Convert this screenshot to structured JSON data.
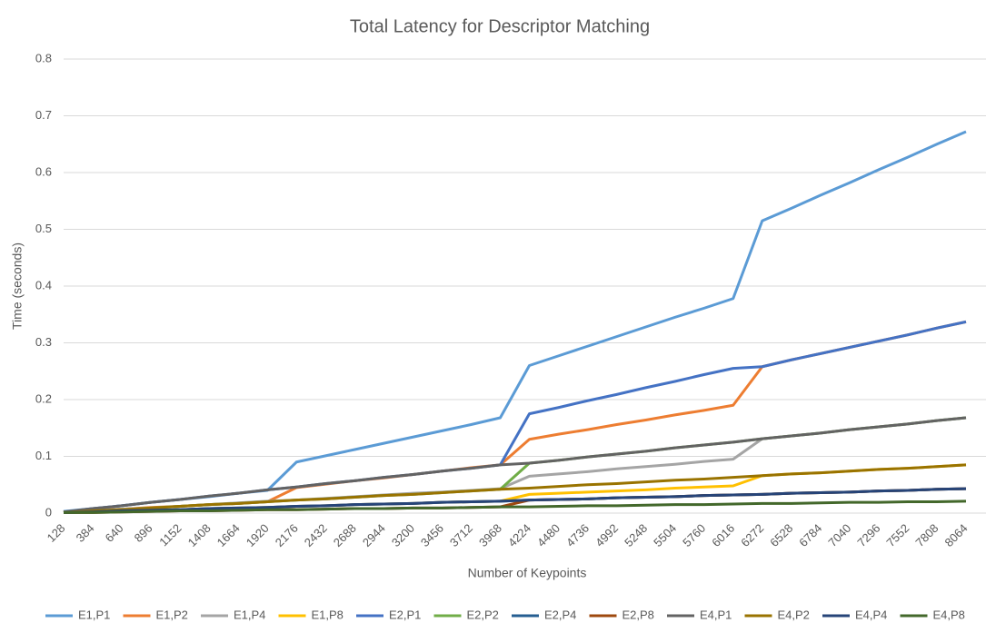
{
  "chart_data": {
    "type": "line",
    "title": "Total Latency for Descriptor Matching",
    "x_label": "Number of Keypoints",
    "y_label": "Time (seconds)",
    "categories": [
      "128",
      "384",
      "640",
      "896",
      "1152",
      "1408",
      "1664",
      "1920",
      "2176",
      "2432",
      "2688",
      "2944",
      "3200",
      "3456",
      "3712",
      "3968",
      "4224",
      "4480",
      "4736",
      "4992",
      "5248",
      "5504",
      "5760",
      "6016",
      "6272",
      "6528",
      "6784",
      "7040",
      "7296",
      "7552",
      "7808",
      "8064"
    ],
    "ylim": [
      0,
      0.8
    ],
    "yticks": [
      0,
      0.1,
      0.2,
      0.3,
      0.4,
      0.5,
      0.6,
      0.7,
      0.8
    ],
    "grid": true,
    "legend": "bottom",
    "series": [
      {
        "name": "E1,P1",
        "color": "#5b9bd5",
        "values": [
          0.003,
          0.008,
          0.013,
          0.019,
          0.024,
          0.029,
          0.035,
          0.04,
          0.09,
          0.101,
          0.112,
          0.123,
          0.134,
          0.145,
          0.156,
          0.168,
          0.26,
          0.277,
          0.294,
          0.311,
          0.328,
          0.345,
          0.361,
          0.378,
          0.515,
          0.537,
          0.56,
          0.582,
          0.605,
          0.627,
          0.65,
          0.672
        ]
      },
      {
        "name": "E1,P2",
        "color": "#ed7d31",
        "values": [
          0.002,
          0.005,
          0.007,
          0.01,
          0.012,
          0.015,
          0.017,
          0.02,
          0.045,
          0.051,
          0.057,
          0.062,
          0.068,
          0.074,
          0.08,
          0.085,
          0.13,
          0.139,
          0.147,
          0.156,
          0.164,
          0.173,
          0.181,
          0.19,
          0.258,
          0.27,
          0.281,
          0.292,
          0.303,
          0.314,
          0.326,
          0.337
        ]
      },
      {
        "name": "E1,P4",
        "color": "#a5a5a5",
        "values": [
          0.001,
          0.004,
          0.007,
          0.009,
          0.012,
          0.015,
          0.018,
          0.021,
          0.023,
          0.026,
          0.029,
          0.032,
          0.035,
          0.037,
          0.04,
          0.043,
          0.065,
          0.069,
          0.073,
          0.078,
          0.082,
          0.086,
          0.091,
          0.095,
          0.131,
          0.136,
          0.141,
          0.147,
          0.152,
          0.157,
          0.163,
          0.168
        ]
      },
      {
        "name": "E1,P8",
        "color": "#ffc000",
        "values": [
          0.001,
          0.002,
          0.004,
          0.005,
          0.006,
          0.008,
          0.009,
          0.01,
          0.012,
          0.013,
          0.015,
          0.016,
          0.017,
          0.019,
          0.02,
          0.021,
          0.033,
          0.035,
          0.037,
          0.039,
          0.041,
          0.044,
          0.046,
          0.048,
          0.066,
          0.069,
          0.071,
          0.074,
          0.077,
          0.079,
          0.082,
          0.085
        ]
      },
      {
        "name": "E2,P1",
        "color": "#4472c4",
        "values": [
          0.002,
          0.008,
          0.013,
          0.019,
          0.024,
          0.03,
          0.035,
          0.041,
          0.046,
          0.052,
          0.057,
          0.063,
          0.068,
          0.074,
          0.079,
          0.085,
          0.175,
          0.186,
          0.198,
          0.209,
          0.221,
          0.232,
          0.244,
          0.255,
          0.258,
          0.27,
          0.281,
          0.292,
          0.303,
          0.314,
          0.326,
          0.337
        ]
      },
      {
        "name": "E2,P2",
        "color": "#70ad47",
        "values": [
          0.001,
          0.004,
          0.006,
          0.009,
          0.012,
          0.015,
          0.017,
          0.02,
          0.023,
          0.025,
          0.028,
          0.031,
          0.033,
          0.036,
          0.039,
          0.042,
          0.088,
          0.093,
          0.099,
          0.104,
          0.109,
          0.115,
          0.12,
          0.125,
          0.131,
          0.136,
          0.141,
          0.147,
          0.152,
          0.157,
          0.163,
          0.168
        ]
      },
      {
        "name": "E2,P4",
        "color": "#255e91",
        "values": [
          0.001,
          0.002,
          0.004,
          0.005,
          0.006,
          0.008,
          0.009,
          0.01,
          0.012,
          0.013,
          0.015,
          0.016,
          0.017,
          0.019,
          0.02,
          0.021,
          0.023,
          0.024,
          0.025,
          0.027,
          0.028,
          0.029,
          0.031,
          0.032,
          0.033,
          0.035,
          0.036,
          0.037,
          0.039,
          0.04,
          0.042,
          0.043
        ]
      },
      {
        "name": "E2,P8",
        "color": "#9e480e",
        "values": [
          0.001,
          0.001,
          0.002,
          0.003,
          0.004,
          0.004,
          0.005,
          0.006,
          0.006,
          0.007,
          0.008,
          0.008,
          0.009,
          0.009,
          0.01,
          0.011,
          0.023,
          0.024,
          0.025,
          0.027,
          0.028,
          0.029,
          0.031,
          0.032,
          0.033,
          0.035,
          0.036,
          0.037,
          0.039,
          0.04,
          0.042,
          0.043
        ]
      },
      {
        "name": "E4,P1",
        "color": "#636363",
        "values": [
          0.002,
          0.008,
          0.013,
          0.019,
          0.024,
          0.03,
          0.035,
          0.041,
          0.046,
          0.052,
          0.057,
          0.063,
          0.068,
          0.074,
          0.079,
          0.085,
          0.088,
          0.093,
          0.099,
          0.104,
          0.109,
          0.115,
          0.12,
          0.125,
          0.131,
          0.136,
          0.141,
          0.147,
          0.152,
          0.157,
          0.163,
          0.168
        ]
      },
      {
        "name": "E4,P2",
        "color": "#997300",
        "values": [
          0.001,
          0.004,
          0.006,
          0.009,
          0.012,
          0.015,
          0.017,
          0.02,
          0.023,
          0.025,
          0.028,
          0.031,
          0.033,
          0.036,
          0.039,
          0.042,
          0.044,
          0.047,
          0.05,
          0.052,
          0.055,
          0.058,
          0.06,
          0.063,
          0.066,
          0.069,
          0.071,
          0.074,
          0.077,
          0.079,
          0.082,
          0.085
        ]
      },
      {
        "name": "E4,P4",
        "color": "#264478",
        "values": [
          0.001,
          0.002,
          0.004,
          0.005,
          0.006,
          0.008,
          0.009,
          0.01,
          0.012,
          0.013,
          0.015,
          0.016,
          0.017,
          0.019,
          0.02,
          0.021,
          0.023,
          0.024,
          0.025,
          0.027,
          0.028,
          0.029,
          0.031,
          0.032,
          0.033,
          0.035,
          0.036,
          0.037,
          0.039,
          0.04,
          0.042,
          0.043
        ]
      },
      {
        "name": "E4,P8",
        "color": "#43682b",
        "values": [
          0.001,
          0.001,
          0.002,
          0.003,
          0.004,
          0.004,
          0.005,
          0.006,
          0.006,
          0.007,
          0.008,
          0.008,
          0.009,
          0.009,
          0.01,
          0.011,
          0.011,
          0.012,
          0.013,
          0.013,
          0.014,
          0.015,
          0.015,
          0.016,
          0.017,
          0.017,
          0.018,
          0.019,
          0.019,
          0.02,
          0.02,
          0.021
        ]
      }
    ]
  }
}
